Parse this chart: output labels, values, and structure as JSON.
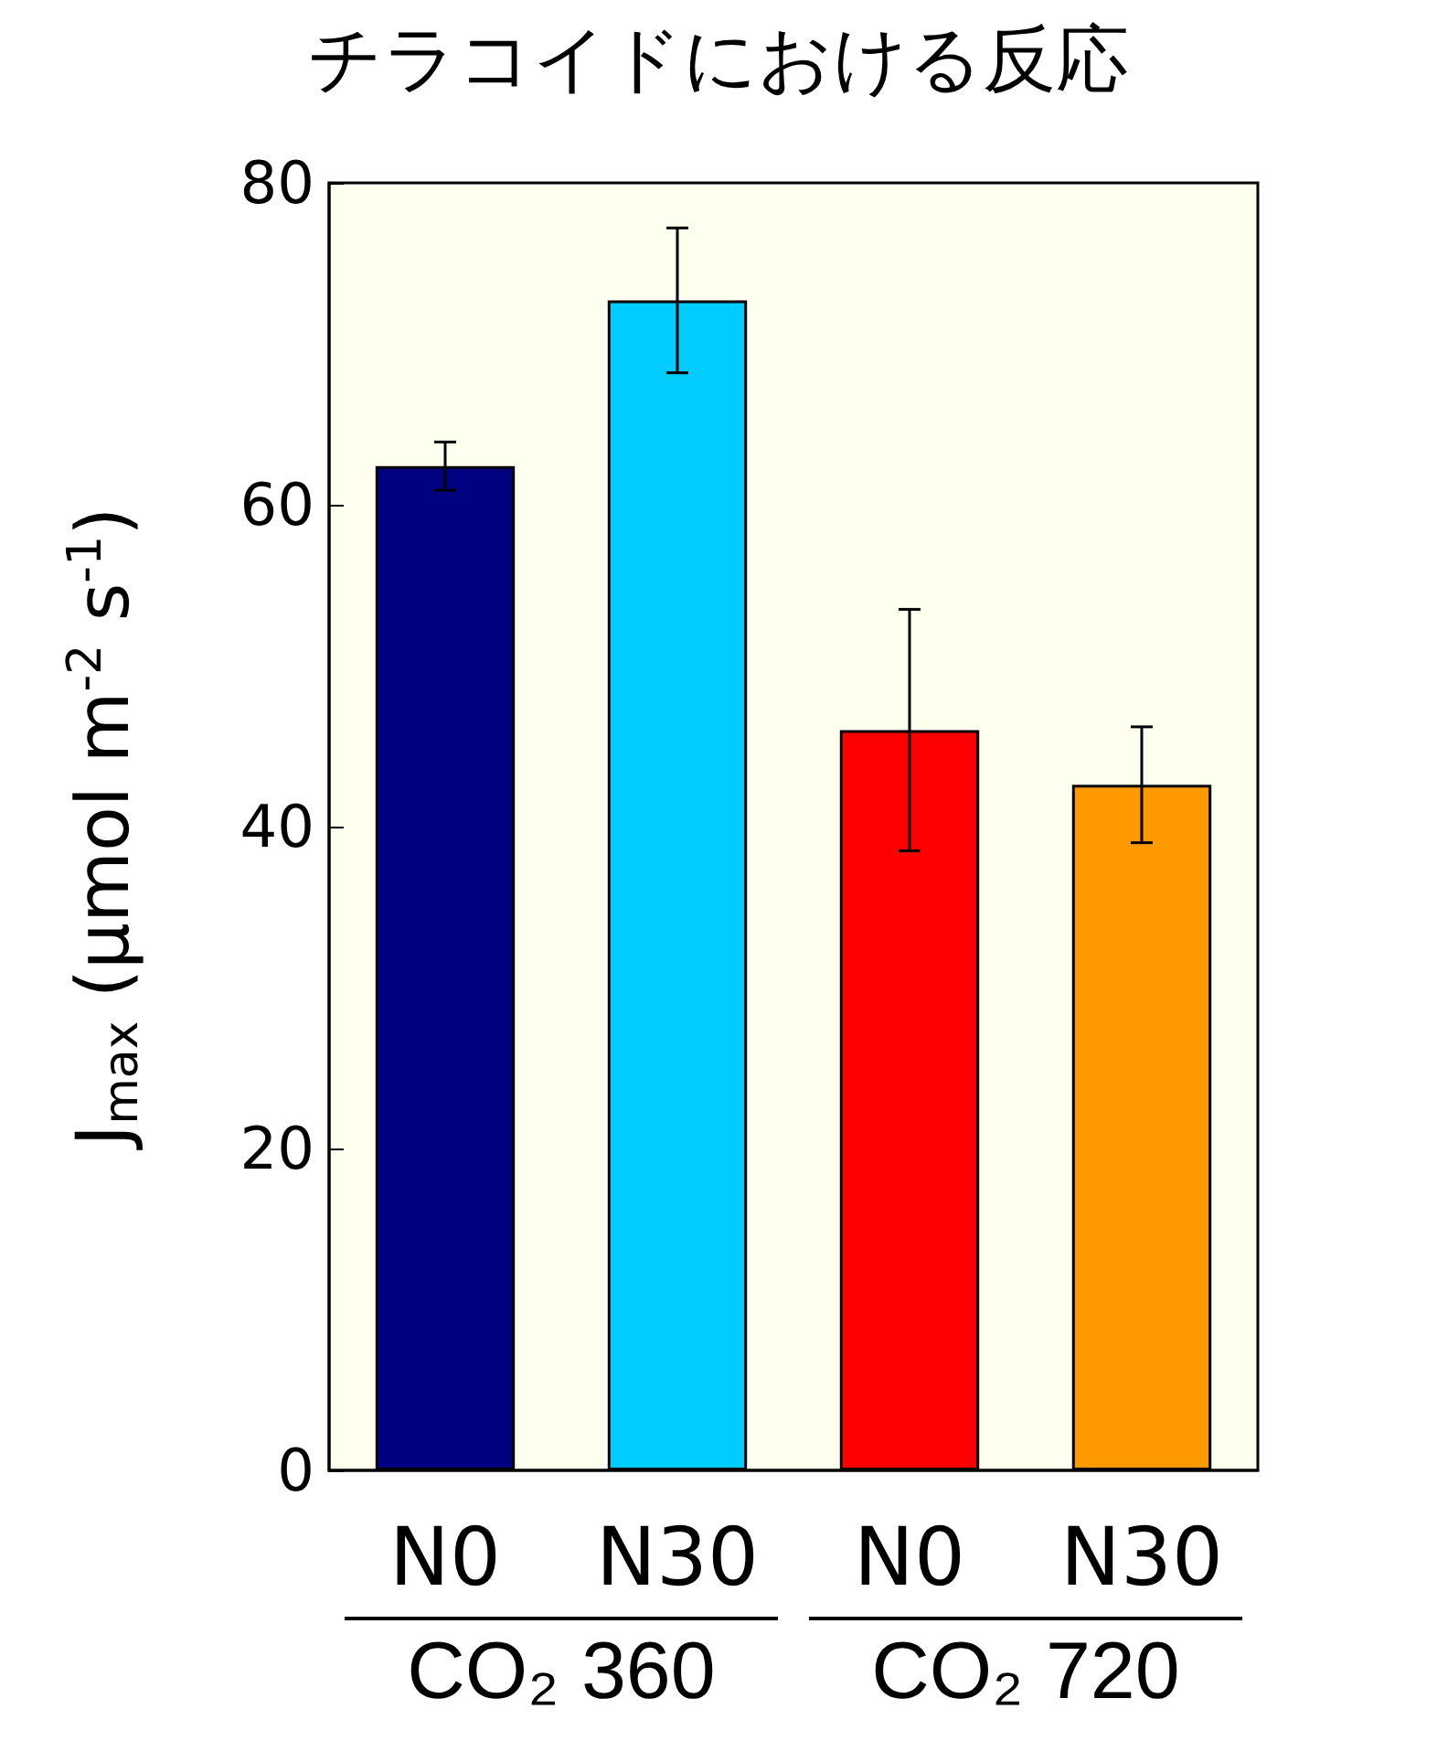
{
  "chart_data": {
    "type": "bar",
    "title": "チラコイドにおける反応",
    "ylabel": "J$_{max}$ (μmol m$^{-2}$ s$^{-1}$)",
    "categories": [
      "N0",
      "N30",
      "N0",
      "N30"
    ],
    "values": [
      62.4,
      72.7,
      46.0,
      42.6
    ],
    "errors": [
      1.5,
      4.5,
      7.5,
      3.6
    ],
    "colors": [
      "#000080",
      "#00ccff",
      "#ff0000",
      "#ff9900"
    ],
    "ylim": [
      0,
      80
    ],
    "yticks": [
      0,
      20,
      40,
      60,
      80
    ],
    "grid": false,
    "annotations": [
      "CO₂ 360",
      "CO₂ 720"
    ]
  }
}
